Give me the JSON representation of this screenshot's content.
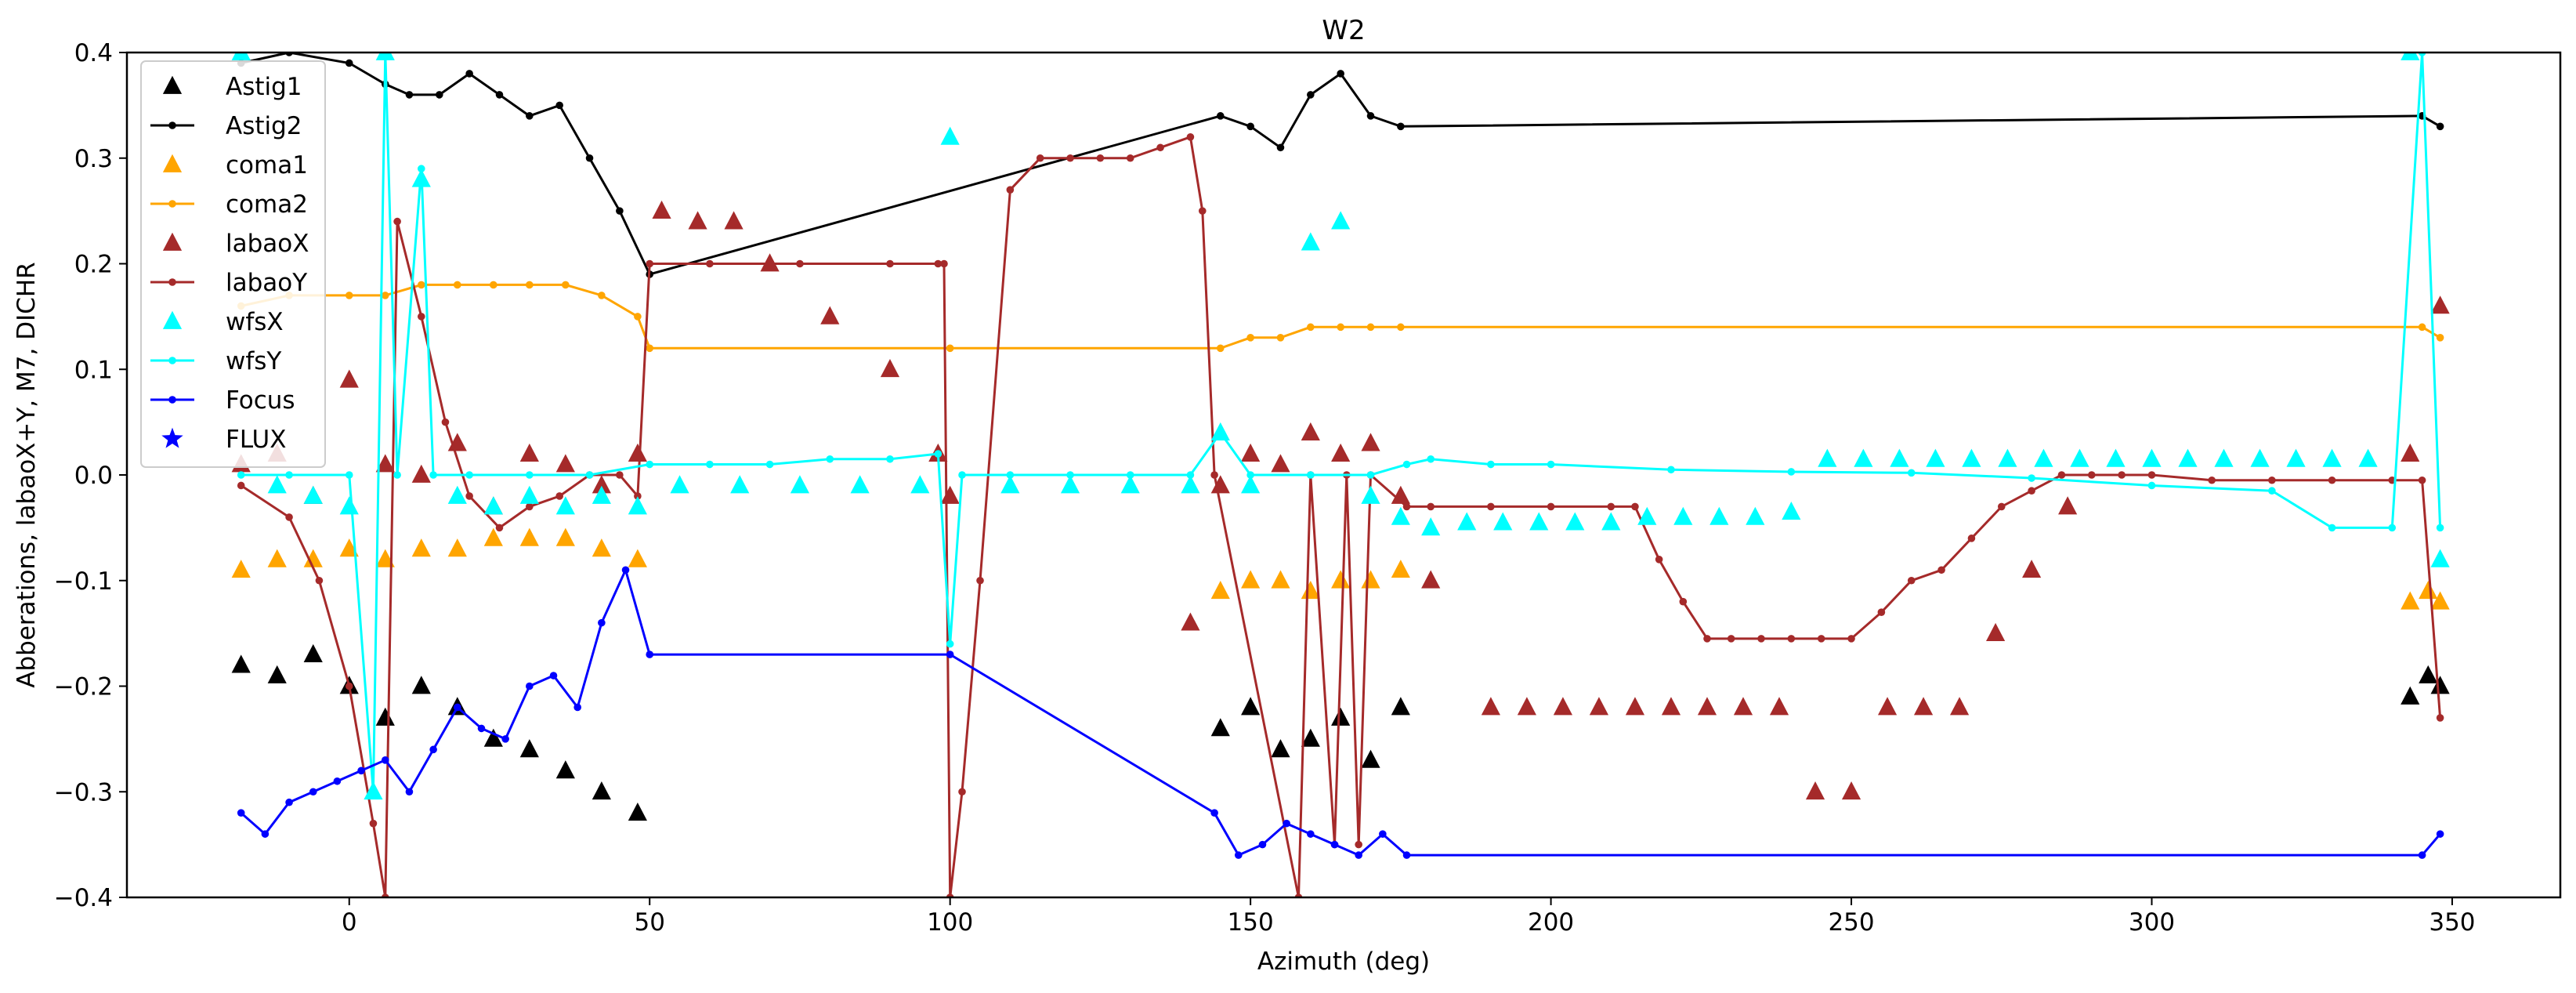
{
  "chart_data": {
    "type": "line",
    "title": "W2",
    "xlabel": "Azimuth (deg)",
    "ylabel": "Abberations, labaoX+Y, M7, DICHR",
    "xlim": [
      -37,
      368
    ],
    "ylim": [
      -0.4,
      0.4
    ],
    "x_ticks": [
      0,
      50,
      100,
      150,
      200,
      250,
      300,
      350
    ],
    "y_ticks": [
      -0.4,
      -0.3,
      -0.2,
      -0.1,
      0.0,
      0.1,
      0.2,
      0.3,
      0.4
    ],
    "x_tick_labels": [
      "0",
      "50",
      "100",
      "150",
      "200",
      "250",
      "300",
      "350"
    ],
    "y_tick_labels": [
      "−0.4",
      "−0.3",
      "−0.2",
      "−0.1",
      "0.0",
      "0.1",
      "0.2",
      "0.3",
      "0.4"
    ],
    "grid": false,
    "legend_position": "upper-left",
    "series": [
      {
        "name": "Astig1",
        "style": "markers",
        "marker": "triangle",
        "color": "#000000",
        "x": [
          -18,
          -12,
          -6,
          0,
          6,
          12,
          18,
          24,
          30,
          36,
          42,
          48,
          145,
          150,
          155,
          160,
          165,
          170,
          175,
          343,
          346,
          348
        ],
        "y": [
          -0.18,
          -0.19,
          -0.17,
          -0.2,
          -0.23,
          -0.2,
          -0.22,
          -0.25,
          -0.26,
          -0.28,
          -0.3,
          -0.32,
          -0.24,
          -0.22,
          -0.26,
          -0.25,
          -0.23,
          -0.27,
          -0.22,
          -0.21,
          -0.19,
          -0.2
        ]
      },
      {
        "name": "Astig2",
        "style": "line-markers",
        "marker": "dot",
        "color": "#000000",
        "x": [
          -18,
          -10,
          0,
          6,
          10,
          15,
          20,
          25,
          30,
          35,
          40,
          45,
          50,
          145,
          150,
          155,
          160,
          165,
          170,
          175,
          345,
          348
        ],
        "y": [
          0.39,
          0.4,
          0.39,
          0.37,
          0.36,
          0.36,
          0.38,
          0.36,
          0.34,
          0.35,
          0.3,
          0.25,
          0.19,
          0.34,
          0.33,
          0.31,
          0.36,
          0.38,
          0.34,
          0.33,
          0.34,
          0.33
        ]
      },
      {
        "name": "coma1",
        "style": "markers",
        "marker": "triangle",
        "color": "#ffa500",
        "x": [
          -18,
          -12,
          -6,
          0,
          6,
          12,
          18,
          24,
          30,
          36,
          42,
          48,
          145,
          150,
          155,
          160,
          165,
          170,
          175,
          343,
          346,
          348
        ],
        "y": [
          -0.09,
          -0.08,
          -0.08,
          -0.07,
          -0.08,
          -0.07,
          -0.07,
          -0.06,
          -0.06,
          -0.06,
          -0.07,
          -0.08,
          -0.11,
          -0.1,
          -0.1,
          -0.11,
          -0.1,
          -0.1,
          -0.09,
          -0.12,
          -0.11,
          -0.12
        ]
      },
      {
        "name": "coma2",
        "style": "line-markers",
        "marker": "dot",
        "color": "#ffa500",
        "x": [
          -18,
          -10,
          0,
          6,
          12,
          18,
          24,
          30,
          36,
          42,
          48,
          50,
          100,
          145,
          150,
          155,
          160,
          165,
          170,
          175,
          345,
          348
        ],
        "y": [
          0.16,
          0.17,
          0.17,
          0.17,
          0.18,
          0.18,
          0.18,
          0.18,
          0.18,
          0.17,
          0.15,
          0.12,
          0.12,
          0.12,
          0.13,
          0.13,
          0.14,
          0.14,
          0.14,
          0.14,
          0.14,
          0.13
        ]
      },
      {
        "name": "labaoX",
        "style": "markers",
        "marker": "triangle",
        "color": "#a52a2a",
        "x": [
          -18,
          -12,
          -6,
          0,
          6,
          12,
          18,
          24,
          30,
          36,
          42,
          48,
          52,
          58,
          64,
          70,
          80,
          90,
          98,
          100,
          140,
          145,
          150,
          155,
          160,
          165,
          170,
          175,
          180,
          190,
          196,
          202,
          208,
          214,
          220,
          226,
          232,
          238,
          244,
          250,
          256,
          262,
          268,
          274,
          280,
          286,
          343,
          348
        ],
        "y": [
          0.01,
          0.02,
          -0.02,
          0.09,
          0.01,
          0.0,
          0.03,
          -0.03,
          0.02,
          0.01,
          -0.01,
          0.02,
          0.25,
          0.24,
          0.24,
          0.2,
          0.15,
          0.1,
          0.02,
          -0.02,
          -0.14,
          -0.01,
          0.02,
          0.01,
          0.04,
          0.02,
          0.03,
          -0.02,
          -0.1,
          -0.22,
          -0.22,
          -0.22,
          -0.22,
          -0.22,
          -0.22,
          -0.22,
          -0.22,
          -0.22,
          -0.3,
          -0.3,
          -0.22,
          -0.22,
          -0.22,
          -0.15,
          -0.09,
          -0.03,
          0.02,
          0.16
        ]
      },
      {
        "name": "labaoY",
        "style": "line-markers",
        "marker": "dot",
        "color": "#a52a2a",
        "x": [
          -18,
          -10,
          -5,
          0,
          4,
          6,
          8,
          12,
          16,
          20,
          25,
          30,
          35,
          40,
          45,
          48,
          50,
          60,
          75,
          90,
          98,
          99,
          100,
          102,
          105,
          110,
          115,
          120,
          125,
          130,
          135,
          140,
          142,
          144,
          158,
          160,
          164,
          166,
          168,
          170,
          176,
          180,
          190,
          200,
          210,
          214,
          218,
          222,
          226,
          230,
          235,
          240,
          245,
          250,
          255,
          260,
          265,
          270,
          275,
          280,
          285,
          290,
          295,
          300,
          310,
          320,
          330,
          340,
          345,
          348
        ],
        "y": [
          -0.01,
          -0.04,
          -0.1,
          -0.2,
          -0.33,
          -0.4,
          0.24,
          0.15,
          0.05,
          -0.02,
          -0.05,
          -0.03,
          -0.02,
          0.0,
          0.0,
          -0.02,
          0.2,
          0.2,
          0.2,
          0.2,
          0.2,
          0.2,
          -0.4,
          -0.3,
          -0.1,
          0.27,
          0.3,
          0.3,
          0.3,
          0.3,
          0.31,
          0.32,
          0.25,
          0.0,
          -0.4,
          0.0,
          -0.35,
          0.0,
          -0.35,
          0.0,
          -0.03,
          -0.03,
          -0.03,
          -0.03,
          -0.03,
          -0.03,
          -0.08,
          -0.12,
          -0.155,
          -0.155,
          -0.155,
          -0.155,
          -0.155,
          -0.155,
          -0.13,
          -0.1,
          -0.09,
          -0.06,
          -0.03,
          -0.015,
          0.0,
          0.0,
          0.0,
          0.0,
          -0.005,
          -0.005,
          -0.005,
          -0.005,
          -0.005,
          -0.23
        ]
      },
      {
        "name": "wfsX",
        "style": "markers",
        "marker": "triangle",
        "color": "#00ffff",
        "x": [
          -18,
          -12,
          -6,
          0,
          4,
          6,
          12,
          18,
          24,
          30,
          36,
          42,
          48,
          55,
          65,
          75,
          85,
          95,
          100,
          110,
          120,
          130,
          140,
          145,
          150,
          160,
          165,
          170,
          175,
          180,
          186,
          192,
          198,
          204,
          210,
          216,
          222,
          228,
          234,
          240,
          246,
          252,
          258,
          264,
          270,
          276,
          282,
          288,
          294,
          300,
          306,
          312,
          318,
          324,
          330,
          336,
          343,
          348
        ],
        "y": [
          0.4,
          -0.01,
          -0.02,
          -0.03,
          -0.3,
          0.4,
          0.28,
          -0.02,
          -0.03,
          -0.02,
          -0.03,
          -0.02,
          -0.03,
          -0.01,
          -0.01,
          -0.01,
          -0.01,
          -0.01,
          0.32,
          -0.01,
          -0.01,
          -0.01,
          -0.01,
          0.04,
          -0.01,
          0.22,
          0.24,
          -0.02,
          -0.04,
          -0.05,
          -0.045,
          -0.045,
          -0.045,
          -0.045,
          -0.045,
          -0.04,
          -0.04,
          -0.04,
          -0.04,
          -0.035,
          0.015,
          0.015,
          0.015,
          0.015,
          0.015,
          0.015,
          0.015,
          0.015,
          0.015,
          0.015,
          0.015,
          0.015,
          0.015,
          0.015,
          0.015,
          0.015,
          0.4,
          -0.08
        ]
      },
      {
        "name": "wfsY",
        "style": "line-markers",
        "marker": "dot",
        "color": "#00ffff",
        "x": [
          -18,
          -10,
          0,
          4,
          6,
          8,
          12,
          14,
          20,
          30,
          40,
          50,
          60,
          70,
          80,
          90,
          98,
          100,
          102,
          110,
          120,
          130,
          140,
          145,
          150,
          160,
          170,
          176,
          180,
          190,
          200,
          220,
          240,
          260,
          280,
          300,
          320,
          330,
          340,
          345,
          348
        ],
        "y": [
          0.0,
          0.0,
          0.0,
          -0.3,
          0.4,
          0.0,
          0.29,
          0.0,
          0.0,
          0.0,
          0.0,
          0.01,
          0.01,
          0.01,
          0.015,
          0.015,
          0.02,
          -0.16,
          0.0,
          0.0,
          0.0,
          0.0,
          0.0,
          0.04,
          0.0,
          0.0,
          0.0,
          0.01,
          0.015,
          0.01,
          0.01,
          0.005,
          0.003,
          0.002,
          -0.003,
          -0.01,
          -0.015,
          -0.05,
          -0.05,
          0.4,
          -0.05
        ]
      },
      {
        "name": "Focus",
        "style": "line-markers",
        "marker": "dot",
        "color": "#0000ff",
        "x": [
          -18,
          -14,
          -10,
          -6,
          -2,
          2,
          6,
          10,
          14,
          18,
          22,
          26,
          30,
          34,
          38,
          42,
          46,
          50,
          100,
          144,
          148,
          152,
          156,
          160,
          164,
          168,
          172,
          176,
          345,
          348
        ],
        "y": [
          -0.32,
          -0.34,
          -0.31,
          -0.3,
          -0.29,
          -0.28,
          -0.27,
          -0.3,
          -0.26,
          -0.22,
          -0.24,
          -0.25,
          -0.2,
          -0.19,
          -0.22,
          -0.14,
          -0.09,
          -0.17,
          -0.17,
          -0.32,
          -0.36,
          -0.35,
          -0.33,
          -0.34,
          -0.35,
          -0.36,
          -0.34,
          -0.36,
          -0.36,
          -0.34
        ]
      },
      {
        "name": "FLUX",
        "style": "markers",
        "marker": "star",
        "color": "#0000ff",
        "x": [],
        "y": []
      }
    ]
  }
}
